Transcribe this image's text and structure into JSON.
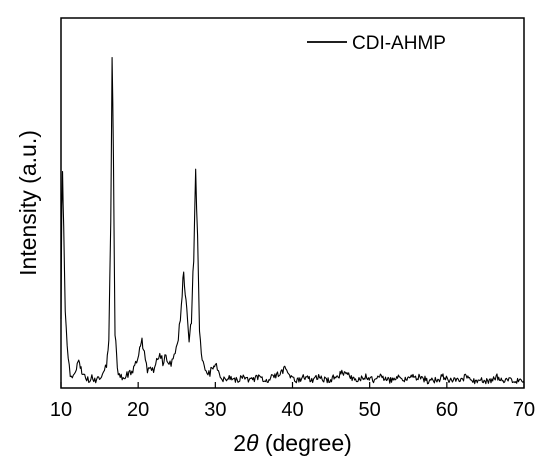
{
  "chart_data": {
    "type": "line",
    "title": "",
    "xlabel_prefix": "2",
    "xlabel_symbol": "θ",
    "xlabel_suffix": " (degree)",
    "ylabel": "Intensity (a.u.)",
    "xlim": [
      10,
      70
    ],
    "ylim": [
      0,
      100
    ],
    "xticks": [
      10,
      20,
      30,
      40,
      50,
      60,
      70
    ],
    "xtick_labels": [
      "10",
      "20",
      "30",
      "40",
      "50",
      "60",
      "70"
    ],
    "yticks_shown": false,
    "grid": false,
    "legend_position": "top-right",
    "series": [
      {
        "name": "CDI-AHMP",
        "color": "#000000",
        "points": [
          [
            10.0,
            20
          ],
          [
            10.1,
            48
          ],
          [
            10.2,
            58
          ],
          [
            10.35,
            45
          ],
          [
            10.55,
            20
          ],
          [
            10.8,
            11
          ],
          [
            11.2,
            4
          ],
          [
            11.6,
            3
          ],
          [
            12.0,
            5
          ],
          [
            12.3,
            8
          ],
          [
            12.5,
            6
          ],
          [
            12.8,
            4
          ],
          [
            13.2,
            3
          ],
          [
            13.6,
            2
          ],
          [
            14.0,
            3
          ],
          [
            14.5,
            2
          ],
          [
            15.0,
            3
          ],
          [
            15.5,
            4
          ],
          [
            15.9,
            6
          ],
          [
            16.2,
            14
          ],
          [
            16.45,
            45
          ],
          [
            16.62,
            90
          ],
          [
            16.8,
            60
          ],
          [
            17.0,
            15
          ],
          [
            17.3,
            5
          ],
          [
            17.8,
            3
          ],
          [
            18.3,
            3
          ],
          [
            18.8,
            4
          ],
          [
            19.3,
            5
          ],
          [
            19.8,
            7
          ],
          [
            20.2,
            10
          ],
          [
            20.5,
            13
          ],
          [
            20.8,
            9
          ],
          [
            21.2,
            5
          ],
          [
            21.6,
            6
          ],
          [
            22.0,
            5
          ],
          [
            22.4,
            7
          ],
          [
            22.8,
            10
          ],
          [
            23.2,
            7
          ],
          [
            23.6,
            9
          ],
          [
            24.0,
            6
          ],
          [
            24.4,
            7
          ],
          [
            24.8,
            9
          ],
          [
            25.2,
            14
          ],
          [
            25.6,
            22
          ],
          [
            25.9,
            32
          ],
          [
            26.1,
            26
          ],
          [
            26.4,
            18
          ],
          [
            26.6,
            13
          ],
          [
            26.9,
            18
          ],
          [
            27.2,
            36
          ],
          [
            27.45,
            58
          ],
          [
            27.7,
            40
          ],
          [
            27.95,
            15
          ],
          [
            28.3,
            7
          ],
          [
            28.8,
            5
          ],
          [
            29.3,
            4
          ],
          [
            29.7,
            6
          ],
          [
            30.0,
            7
          ],
          [
            30.4,
            4
          ],
          [
            31.0,
            2
          ],
          [
            31.8,
            3
          ],
          [
            32.6,
            2
          ],
          [
            33.5,
            3
          ],
          [
            34.5,
            2
          ],
          [
            35.5,
            3
          ],
          [
            36.5,
            2
          ],
          [
            37.5,
            3
          ],
          [
            38.5,
            4
          ],
          [
            39.0,
            5
          ],
          [
            39.5,
            3
          ],
          [
            40.5,
            2
          ],
          [
            41.5,
            3
          ],
          [
            42.5,
            2
          ],
          [
            43.5,
            3
          ],
          [
            44.5,
            2
          ],
          [
            45.5,
            3
          ],
          [
            46.5,
            4
          ],
          [
            47.5,
            3
          ],
          [
            48.5,
            2
          ],
          [
            49.5,
            3
          ],
          [
            50.5,
            2
          ],
          [
            51.5,
            3
          ],
          [
            52.5,
            2
          ],
          [
            53.5,
            3
          ],
          [
            54.5,
            2
          ],
          [
            55.5,
            3
          ],
          [
            56.5,
            3
          ],
          [
            57.5,
            2
          ],
          [
            58.5,
            2
          ],
          [
            59.5,
            3
          ],
          [
            60.5,
            2
          ],
          [
            61.5,
            2
          ],
          [
            62.5,
            3
          ],
          [
            63.5,
            2
          ],
          [
            64.5,
            2
          ],
          [
            65.5,
            2
          ],
          [
            66.5,
            3
          ],
          [
            67.5,
            2
          ],
          [
            68.5,
            2
          ],
          [
            69.5,
            2
          ],
          [
            70.0,
            2
          ]
        ]
      }
    ]
  }
}
